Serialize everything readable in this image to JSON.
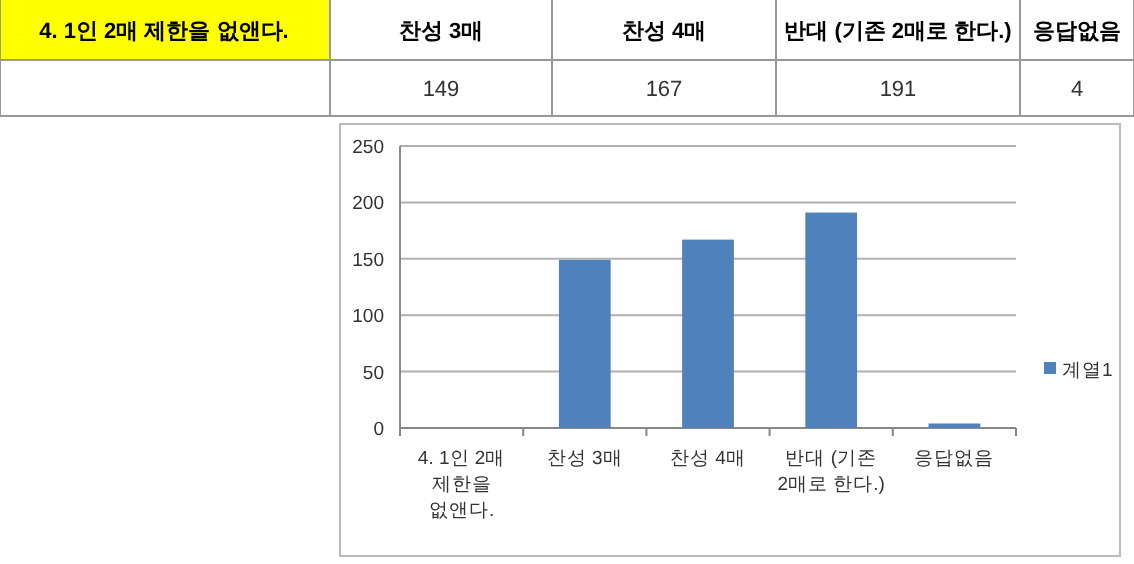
{
  "chart_data": {
    "type": "bar",
    "title": "4. 1인 2매 제한을 없앤다.",
    "categories": [
      "4. 1인 2매 제한을 없앤다.",
      "찬성 3매",
      "찬성 4매",
      "반대 (기존 2매로 한다.)",
      "응답없음"
    ],
    "series": [
      {
        "name": "계열1",
        "color": "#4f81bd",
        "values": [
          null,
          149,
          167,
          191,
          4
        ]
      }
    ],
    "ylim": [
      0,
      250
    ],
    "yticks": [
      0,
      50,
      100,
      150,
      200,
      250
    ],
    "grid": "y",
    "legend": "right",
    "annotations": [
      "149",
      "167",
      "191",
      "4"
    ]
  }
}
